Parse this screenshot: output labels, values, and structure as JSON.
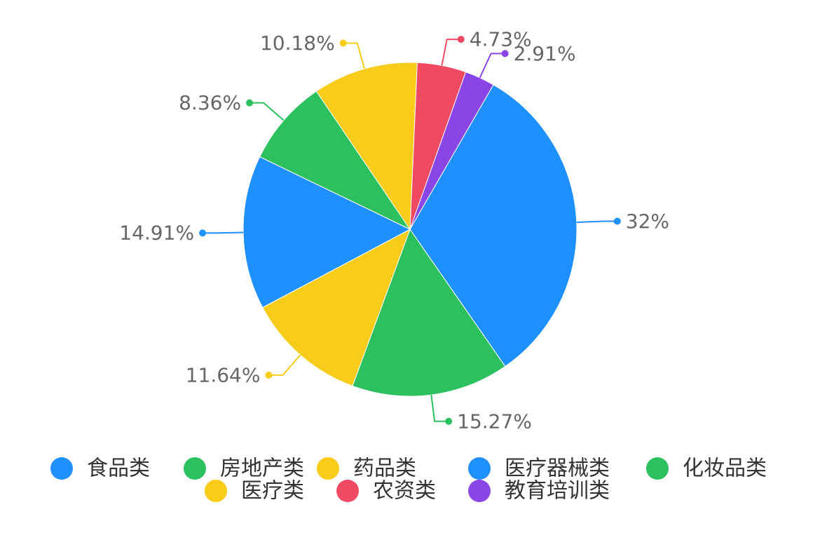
{
  "chart_data": {
    "type": "pie",
    "categories": [
      "食品类",
      "房地产类",
      "药品类",
      "医疗器械类",
      "化妆品类",
      "医疗类",
      "农资类",
      "教育培训类"
    ],
    "values": [
      32,
      15.27,
      11.64,
      14.91,
      8.36,
      10.18,
      4.73,
      2.91
    ],
    "labels": [
      "32%",
      "15.27%",
      "11.64%",
      "14.91%",
      "8.36%",
      "10.18%",
      "4.73%",
      "2.91%"
    ],
    "colors": [
      "#1e90ff",
      "#2dc05f",
      "#f8cc1a",
      "#1e90ff",
      "#2dc05f",
      "#f8cc1a",
      "#f04a63",
      "#8a45e6"
    ],
    "start_angle_deg": 30,
    "direction": "clockwise",
    "legend_position": "bottom"
  }
}
